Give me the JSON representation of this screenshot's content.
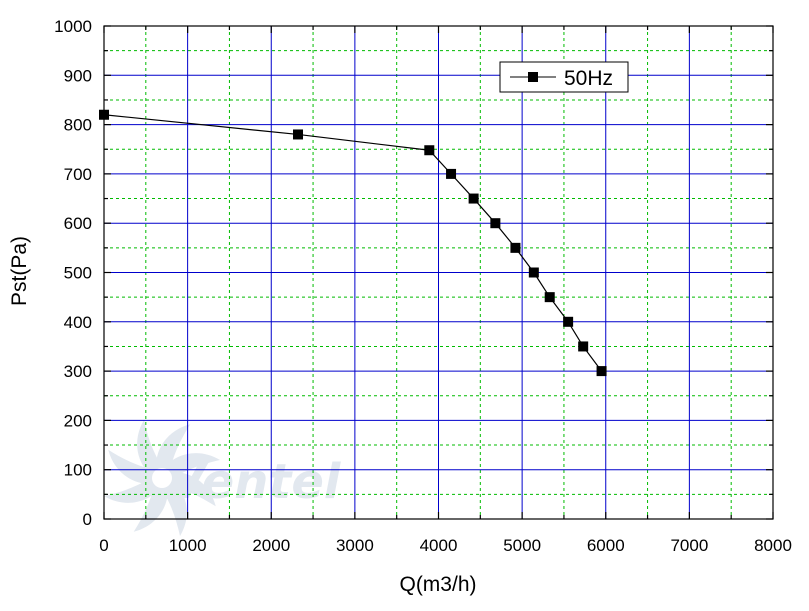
{
  "watermark": {
    "text": "Ventel",
    "color": "#e2e8ef"
  },
  "chart_data": {
    "type": "line",
    "title": "",
    "xlabel": "Q(m3/h)",
    "ylabel": "Pst(Pa)",
    "xlim": [
      0,
      8000
    ],
    "ylim": [
      0,
      1000
    ],
    "x_ticks": [
      "0",
      "1000",
      "2000",
      "3000",
      "4000",
      "5000",
      "6000",
      "7000",
      "8000"
    ],
    "y_ticks": [
      "0",
      "100",
      "200",
      "300",
      "400",
      "500",
      "600",
      "700",
      "800",
      "900",
      "1000"
    ],
    "grid": {
      "major": true,
      "major_color": "#0000cc",
      "minor": true,
      "minor_color": "#00bb00",
      "minor_style": "dashed"
    },
    "legend": {
      "placement": "top-right",
      "entries": [
        "50Hz"
      ]
    },
    "series": [
      {
        "name": "50Hz",
        "color": "#000000",
        "marker": "square",
        "x": [
          0,
          2320,
          3890,
          4150,
          4420,
          4680,
          4920,
          5140,
          5330,
          5550,
          5730,
          5950
        ],
        "y": [
          820,
          780,
          748,
          700,
          650,
          600,
          550,
          500,
          450,
          400,
          350,
          300
        ]
      }
    ]
  }
}
